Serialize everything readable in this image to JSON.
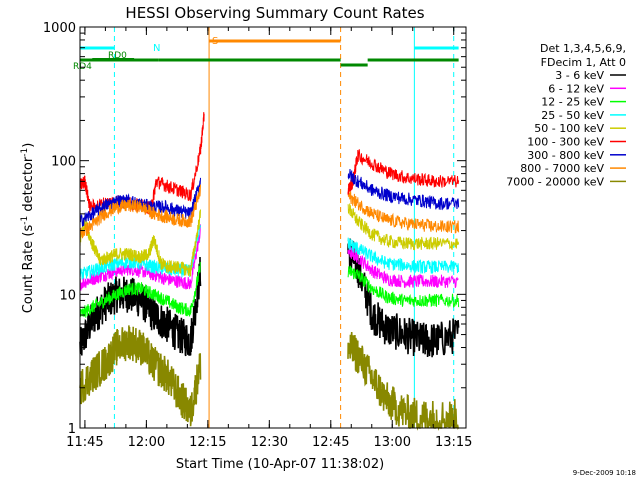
{
  "chart_data": {
    "type": "line",
    "title": "HESSI Observing Summary Count Rates",
    "xlabel": "Start Time (10-Apr-07 11:38:02)",
    "ylabel_main": "Count Rate (s",
    "ylabel_sup1": "-1",
    "ylabel_mid": " detector",
    "ylabel_sup2": "-1",
    "ylabel_end": ")",
    "yscale": "log",
    "ylim": [
      1,
      1000
    ],
    "xlim_minutes": [
      11.73,
      13.3
    ],
    "x_ticks": [
      {
        "value": 11.75,
        "label": "11:45"
      },
      {
        "value": 12.0,
        "label": "12:00"
      },
      {
        "value": 12.25,
        "label": "12:15"
      },
      {
        "value": 12.5,
        "label": "12:30"
      },
      {
        "value": 12.75,
        "label": "12:45"
      },
      {
        "value": 13.0,
        "label": "13:00"
      },
      {
        "value": 13.25,
        "label": "13:15"
      }
    ],
    "y_ticks": [
      {
        "value": 1,
        "label": "1"
      },
      {
        "value": 10,
        "label": "10"
      },
      {
        "value": 100,
        "label": "100"
      },
      {
        "value": 1000,
        "label": "1000"
      }
    ],
    "legend_header": [
      "Det 1,3,4,5,6,9,",
      "FDecim 1, Att 0"
    ],
    "series": [
      {
        "name": "3 - 6 keV",
        "color": "#000000",
        "points": [
          [
            11.73,
            4
          ],
          [
            11.78,
            6.5
          ],
          [
            11.83,
            8.5
          ],
          [
            11.88,
            10
          ],
          [
            11.93,
            10
          ],
          [
            11.98,
            9
          ],
          [
            12.03,
            7
          ],
          [
            12.08,
            6
          ],
          [
            12.13,
            5
          ],
          [
            12.18,
            4.5
          ],
          [
            12.22,
            15
          ],
          [
            12.255,
            null
          ],
          [
            12.81,
            null
          ],
          [
            12.82,
            22
          ],
          [
            12.86,
            16
          ],
          [
            12.92,
            7
          ],
          [
            12.98,
            5.5
          ],
          [
            13.05,
            5
          ],
          [
            13.12,
            4.5
          ],
          [
            13.18,
            4.5
          ],
          [
            13.27,
            5
          ]
        ]
      },
      {
        "name": "6 - 12 keV",
        "color": "#ff00ff",
        "points": [
          [
            11.73,
            12
          ],
          [
            11.78,
            13
          ],
          [
            11.83,
            14
          ],
          [
            11.88,
            15
          ],
          [
            11.93,
            15.5
          ],
          [
            11.98,
            15
          ],
          [
            12.03,
            14
          ],
          [
            12.08,
            13
          ],
          [
            12.13,
            12.5
          ],
          [
            12.18,
            12
          ],
          [
            12.22,
            30
          ],
          [
            12.255,
            null
          ],
          [
            12.81,
            null
          ],
          [
            12.82,
            21
          ],
          [
            12.86,
            19
          ],
          [
            12.92,
            15
          ],
          [
            12.98,
            13
          ],
          [
            13.05,
            12.5
          ],
          [
            13.12,
            12.5
          ],
          [
            13.18,
            12.5
          ],
          [
            13.27,
            12.5
          ]
        ]
      },
      {
        "name": "12 - 25 keV",
        "color": "#00ff00",
        "points": [
          [
            11.73,
            7
          ],
          [
            11.78,
            8
          ],
          [
            11.83,
            9
          ],
          [
            11.88,
            10
          ],
          [
            11.93,
            11
          ],
          [
            11.98,
            11
          ],
          [
            12.03,
            10
          ],
          [
            12.08,
            9
          ],
          [
            12.13,
            8
          ],
          [
            12.18,
            7.5
          ],
          [
            12.22,
            16
          ],
          [
            12.255,
            null
          ],
          [
            12.81,
            null
          ],
          [
            12.82,
            15
          ],
          [
            12.86,
            14
          ],
          [
            12.92,
            11
          ],
          [
            12.98,
            9.5
          ],
          [
            13.05,
            9
          ],
          [
            13.12,
            9
          ],
          [
            13.18,
            9
          ],
          [
            13.27,
            9
          ]
        ]
      },
      {
        "name": "25 - 50 keV",
        "color": "#00ffff",
        "points": [
          [
            11.73,
            14
          ],
          [
            11.78,
            15
          ],
          [
            11.83,
            16
          ],
          [
            11.88,
            17
          ],
          [
            11.93,
            17.5
          ],
          [
            11.98,
            17
          ],
          [
            12.03,
            16
          ],
          [
            12.08,
            15.5
          ],
          [
            12.13,
            15
          ],
          [
            12.18,
            15
          ],
          [
            12.22,
            35
          ],
          [
            12.255,
            null
          ],
          [
            12.81,
            null
          ],
          [
            12.82,
            24
          ],
          [
            12.86,
            22
          ],
          [
            12.92,
            19
          ],
          [
            12.98,
            17
          ],
          [
            13.05,
            16.5
          ],
          [
            13.12,
            16
          ],
          [
            13.18,
            16
          ],
          [
            13.27,
            16
          ]
        ]
      },
      {
        "name": "50 - 100 keV",
        "color": "#cccc00",
        "points": [
          [
            11.73,
            25
          ],
          [
            11.75,
            35
          ],
          [
            11.78,
            24
          ],
          [
            11.81,
            18
          ],
          [
            11.85,
            19
          ],
          [
            11.88,
            20
          ],
          [
            11.93,
            20
          ],
          [
            11.98,
            19
          ],
          [
            12.01,
            20
          ],
          [
            12.03,
            26
          ],
          [
            12.06,
            17
          ],
          [
            12.09,
            16
          ],
          [
            12.13,
            16
          ],
          [
            12.18,
            15
          ],
          [
            12.22,
            40
          ],
          [
            12.255,
            null
          ],
          [
            12.81,
            null
          ],
          [
            12.82,
            45
          ],
          [
            12.86,
            35
          ],
          [
            12.92,
            28
          ],
          [
            12.98,
            25
          ],
          [
            13.05,
            24
          ],
          [
            13.12,
            24
          ],
          [
            13.18,
            24
          ],
          [
            13.27,
            24
          ]
        ]
      },
      {
        "name": "100 - 300 keV",
        "color": "#ff0000",
        "points": [
          [
            11.73,
            65
          ],
          [
            11.75,
            70
          ],
          [
            11.77,
            45
          ],
          [
            11.83,
            48
          ],
          [
            11.88,
            50
          ],
          [
            11.93,
            48
          ],
          [
            11.98,
            46
          ],
          [
            12.02,
            44
          ],
          [
            12.04,
            70
          ],
          [
            12.08,
            65
          ],
          [
            12.13,
            60
          ],
          [
            12.18,
            55
          ],
          [
            12.22,
            120
          ],
          [
            12.235,
            220
          ],
          [
            12.255,
            null
          ],
          [
            12.81,
            null
          ],
          [
            12.82,
            60
          ],
          [
            12.84,
            70
          ],
          [
            12.86,
            110
          ],
          [
            12.92,
            95
          ],
          [
            12.98,
            82
          ],
          [
            13.05,
            75
          ],
          [
            13.12,
            72
          ],
          [
            13.18,
            70
          ],
          [
            13.27,
            70
          ]
        ]
      },
      {
        "name": "300 - 800 keV",
        "color": "#0000cc",
        "points": [
          [
            11.73,
            35
          ],
          [
            11.78,
            40
          ],
          [
            11.83,
            46
          ],
          [
            11.88,
            50
          ],
          [
            11.93,
            50
          ],
          [
            11.98,
            47
          ],
          [
            12.03,
            45
          ],
          [
            12.08,
            45
          ],
          [
            12.13,
            42
          ],
          [
            12.18,
            40
          ],
          [
            12.22,
            70
          ],
          [
            12.255,
            null
          ],
          [
            12.81,
            null
          ],
          [
            12.82,
            80
          ],
          [
            12.86,
            70
          ],
          [
            12.92,
            60
          ],
          [
            12.98,
            55
          ],
          [
            13.05,
            52
          ],
          [
            13.12,
            50
          ],
          [
            13.18,
            48
          ],
          [
            13.27,
            48
          ]
        ]
      },
      {
        "name": "800 - 7000 keV",
        "color": "#ff8800",
        "points": [
          [
            11.73,
            28
          ],
          [
            11.78,
            33
          ],
          [
            11.83,
            40
          ],
          [
            11.88,
            45
          ],
          [
            11.93,
            46
          ],
          [
            11.98,
            45
          ],
          [
            12.03,
            40
          ],
          [
            12.08,
            38
          ],
          [
            12.13,
            36
          ],
          [
            12.18,
            35
          ],
          [
            12.22,
            60
          ],
          [
            12.255,
            null
          ],
          [
            12.81,
            null
          ],
          [
            12.82,
            55
          ],
          [
            12.86,
            48
          ],
          [
            12.92,
            40
          ],
          [
            12.98,
            36
          ],
          [
            13.05,
            34
          ],
          [
            13.12,
            33
          ],
          [
            13.18,
            32
          ],
          [
            13.27,
            32
          ]
        ]
      },
      {
        "name": "7000 - 20000 keV",
        "color": "#888800",
        "points": [
          [
            11.73,
            2
          ],
          [
            11.78,
            2.5
          ],
          [
            11.83,
            3
          ],
          [
            11.88,
            4
          ],
          [
            11.93,
            4.5
          ],
          [
            11.98,
            4
          ],
          [
            12.03,
            3
          ],
          [
            12.08,
            2.5
          ],
          [
            12.13,
            1.8
          ],
          [
            12.18,
            1.3
          ],
          [
            12.22,
            3
          ],
          [
            12.255,
            null
          ],
          [
            12.81,
            null
          ],
          [
            12.82,
            4
          ],
          [
            12.86,
            3.5
          ],
          [
            12.92,
            2.3
          ],
          [
            12.98,
            1.6
          ],
          [
            13.05,
            1.3
          ],
          [
            13.12,
            1.2
          ],
          [
            13.18,
            1.2
          ],
          [
            13.27,
            1.2
          ]
        ]
      }
    ],
    "annotations": {
      "night_label": "N",
      "saa_label": "S",
      "rd0_label": "RD0",
      "rd4_label": "RD4",
      "night_lines": [
        11.73,
        11.87,
        13.25
      ],
      "day_lines": [
        13.09
      ],
      "saa_lines": [
        12.255,
        12.79
      ],
      "night_bars": [
        [
          11.73,
          11.87
        ],
        [
          13.09,
          13.27
        ]
      ],
      "saa_bars": [
        [
          12.255,
          12.79
        ]
      ],
      "rd0_bars": [
        [
          11.78,
          11.95
        ]
      ],
      "rd4_bars": [
        [
          11.73,
          12.05
        ],
        [
          12.05,
          12.79
        ],
        [
          12.79,
          12.9
        ],
        [
          12.9,
          13.27
        ]
      ],
      "night_color": "#00ffff",
      "saa_color": "#ff8800",
      "rd_color": "#008800"
    },
    "footer_date": "9-Dec-2009 10:18"
  }
}
